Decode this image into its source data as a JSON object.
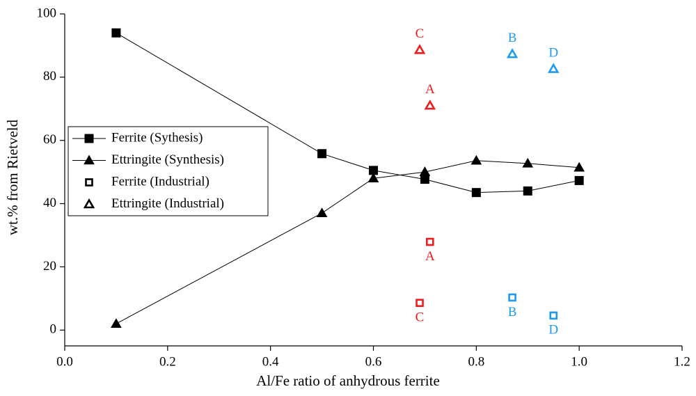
{
  "chart_data": {
    "type": "scatter",
    "xlabel": "Al/Fe ratio of anhydrous ferrite",
    "ylabel": "wt.% from Rietveld",
    "xlim": [
      0,
      1.2
    ],
    "ylim": [
      -5,
      100
    ],
    "xticks": [
      {
        "value": 0,
        "label": "0.0"
      },
      0.2,
      0.4,
      0.6,
      0.8,
      {
        "value": 1,
        "label": "1.0"
      },
      1.2
    ],
    "yticks": [
      0,
      20,
      40,
      60,
      80,
      100
    ],
    "legend": "left",
    "series": [
      {
        "name": "Ferrite (Sythesis)",
        "color": "#000000",
        "marker": "square",
        "filled": true,
        "line": true,
        "x": [
          0.1,
          0.5,
          0.6,
          0.7,
          0.8,
          0.9,
          1.0
        ],
        "values": [
          94,
          55.8,
          50.5,
          47.7,
          43.5,
          44,
          47.3
        ]
      },
      {
        "name": "Ettringite (Synthesis)",
        "color": "#000000",
        "marker": "triangle",
        "filled": true,
        "line": true,
        "x": [
          0.1,
          0.5,
          0.6,
          0.7,
          0.8,
          0.9,
          1.0
        ],
        "values": [
          2,
          37,
          48,
          50,
          53.6,
          52.7,
          51.4
        ]
      },
      {
        "name": "Ferrite (Industrial)",
        "color": "#000000",
        "marker": "square",
        "filled": false,
        "line": false,
        "label_position": "below",
        "x": [
          0.71,
          0.69,
          0.87,
          0.95
        ],
        "values": [
          27.9,
          8.6,
          10.3,
          4.6
        ],
        "point_labels": [
          "A",
          "C",
          "B",
          "D"
        ],
        "point_colors": [
          "#ee1c1c",
          "#ee1c1c",
          "#1e9bef",
          "#1e9bef"
        ]
      },
      {
        "name": "Ettringite (Industrial)",
        "color": "#000000",
        "marker": "triangle",
        "filled": false,
        "line": false,
        "label_position": "above",
        "x": [
          0.69,
          0.71,
          0.87,
          0.95
        ],
        "values": [
          88.6,
          71,
          87.3,
          82.6
        ],
        "point_labels": [
          "C",
          "A",
          "B",
          "D"
        ],
        "point_colors": [
          "#ee1c1c",
          "#ee1c1c",
          "#1e9bef",
          "#1e9bef"
        ]
      }
    ]
  }
}
